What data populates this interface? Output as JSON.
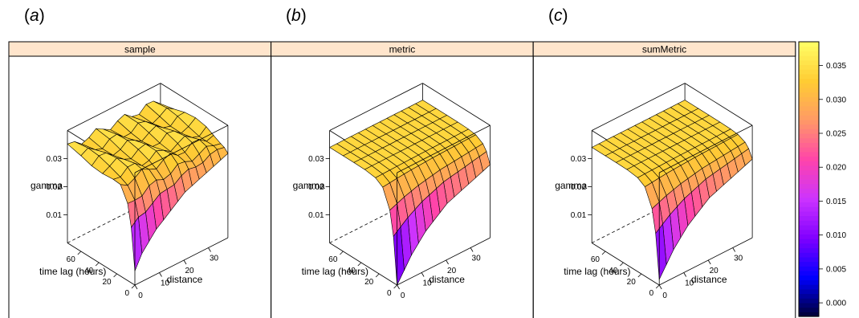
{
  "panel_labels": [
    "a",
    "b",
    "c"
  ],
  "colors": {
    "strip_bg": "#ffe5cc",
    "frame": "#000000",
    "poly_edge": "#000000",
    "colorkey": [
      "#000033",
      "#0000ff",
      "#8000ff",
      "#cc33ff",
      "#ff44aa",
      "#ff9966",
      "#ffcc33",
      "#ffff66"
    ]
  },
  "chart_data": [
    {
      "type": "surface-3d",
      "panel": "a",
      "title": "sample",
      "zlabel": "gamma",
      "xlabel": "distance",
      "ylabel": "time lag (hours)",
      "x_ticks": [
        0,
        10,
        20,
        30
      ],
      "y_ticks": [
        0,
        20,
        40,
        60
      ],
      "z_ticks": [
        0.01,
        0.02,
        0.03
      ],
      "ridge_at_lag0": [
        0.005,
        0.01,
        0.013,
        0.016,
        0.018,
        0.02,
        0.022,
        0.024,
        0.025,
        0.026,
        0.027,
        0.028,
        0.029,
        0.03
      ],
      "plateau": 0.034
    },
    {
      "type": "surface-3d",
      "panel": "b",
      "title": "metric",
      "zlabel": "gamma",
      "xlabel": "distance",
      "ylabel": "time lag (hours)",
      "x_ticks": [
        0,
        10,
        20,
        30
      ],
      "y_ticks": [
        0,
        20,
        40,
        60
      ],
      "z_ticks": [
        0.01,
        0.02,
        0.03
      ],
      "ridge_at_lag0": [
        0.0,
        0.004,
        0.008,
        0.011,
        0.014,
        0.016,
        0.018,
        0.02,
        0.021,
        0.022,
        0.023,
        0.024,
        0.025,
        0.026
      ],
      "plateau": 0.034
    },
    {
      "type": "surface-3d",
      "panel": "c",
      "title": "sumMetric",
      "zlabel": "gamma",
      "xlabel": "distance",
      "ylabel": "time lag (hours)",
      "x_ticks": [
        0,
        10,
        20,
        30
      ],
      "y_ticks": [
        0,
        20,
        40,
        60
      ],
      "z_ticks": [
        0.01,
        0.02,
        0.03
      ],
      "ridge_at_lag0": [
        0.002,
        0.006,
        0.01,
        0.013,
        0.016,
        0.018,
        0.02,
        0.022,
        0.023,
        0.024,
        0.025,
        0.026,
        0.027,
        0.028
      ],
      "plateau": 0.034
    }
  ],
  "colorkey": {
    "ticks": [
      "0.000",
      "0.005",
      "0.010",
      "0.015",
      "0.020",
      "0.025",
      "0.030",
      "0.035"
    ],
    "tick_values": [
      0.0,
      0.005,
      0.01,
      0.015,
      0.02,
      0.025,
      0.03,
      0.035
    ],
    "range": [
      -0.002,
      0.0385
    ]
  }
}
